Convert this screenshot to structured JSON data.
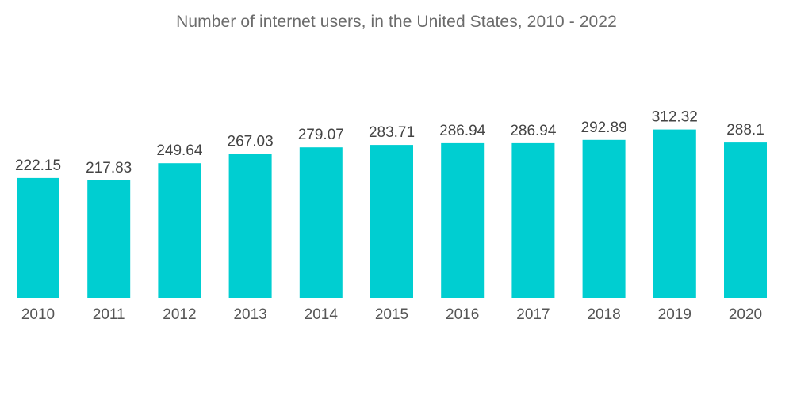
{
  "chart_data": {
    "type": "bar",
    "title": "Number of internet users, in the United States, 2010 - 2022",
    "xlabel": "",
    "ylabel": "",
    "categories": [
      "2010",
      "2011",
      "2012",
      "2013",
      "2014",
      "2015",
      "2016",
      "2017",
      "2018",
      "2019",
      "2020"
    ],
    "values": [
      222.15,
      217.83,
      249.64,
      267.03,
      279.07,
      283.71,
      286.94,
      286.94,
      292.89,
      312.32,
      288.1
    ],
    "value_labels": [
      "222.15",
      "217.83",
      "249.64",
      "267.03",
      "279.07",
      "283.71",
      "286.94",
      "286.94",
      "292.89",
      "312.32",
      "288.1"
    ],
    "ylim": [
      0,
      340
    ],
    "grid": false,
    "legend": "none",
    "bar_color": "#00ced1"
  }
}
